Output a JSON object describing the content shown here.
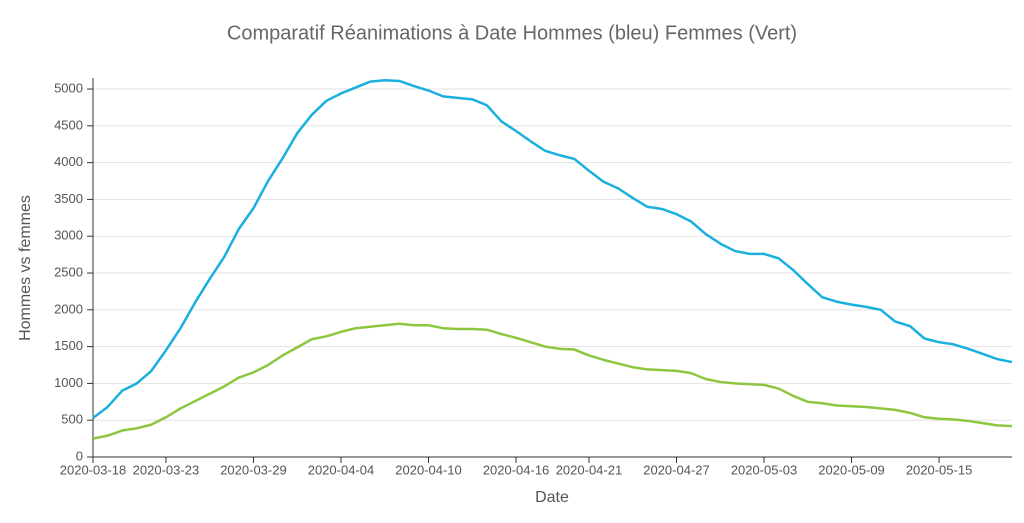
{
  "chart_data": {
    "type": "line",
    "title": "Comparatif Réanimations à Date Hommes (bleu) Femmes (Vert)",
    "x_label": "Date",
    "y_label": "Hommes vs femmes",
    "categories": [
      "2020-03-18",
      null,
      null,
      null,
      null,
      "2020-03-23",
      null,
      null,
      null,
      null,
      null,
      "2020-03-29",
      null,
      null,
      null,
      null,
      null,
      "2020-04-04",
      null,
      null,
      null,
      null,
      null,
      "2020-04-10",
      null,
      null,
      null,
      null,
      null,
      "2020-04-16",
      null,
      null,
      null,
      null,
      "2020-04-21",
      null,
      null,
      null,
      null,
      null,
      "2020-04-27",
      null,
      null,
      null,
      null,
      null,
      "2020-05-03",
      null,
      null,
      null,
      null,
      null,
      "2020-05-09",
      null,
      null,
      null,
      null,
      null,
      "2020-05-15",
      null,
      null,
      null,
      null,
      null
    ],
    "series": [
      {
        "color": "#1ab0de",
        "values": [
          530,
          680,
          900,
          1000,
          1170,
          1450,
          1750,
          2100,
          2420,
          2720,
          3100,
          3380,
          3750,
          4060,
          4400,
          4650,
          4840,
          4940,
          5020,
          5100,
          5120,
          5110,
          5040,
          4980,
          4900,
          4880,
          4860,
          4780,
          4560,
          4430,
          4290,
          4160,
          4100,
          4050,
          3890,
          3740,
          3650,
          3520,
          3400,
          3370,
          3300,
          3200,
          3030,
          2900,
          2800,
          2760,
          2760,
          2700,
          2540,
          2350,
          2170,
          2110,
          2070,
          2040,
          2000,
          1840,
          1780,
          1610,
          1560,
          1530,
          1470,
          1400,
          1330,
          1290
        ]
      },
      {
        "color": "#8dc63f",
        "values": [
          250,
          290,
          360,
          390,
          440,
          540,
          660,
          760,
          860,
          960,
          1080,
          1150,
          1250,
          1380,
          1490,
          1600,
          1640,
          1700,
          1750,
          1770,
          1790,
          1810,
          1790,
          1790,
          1750,
          1740,
          1740,
          1730,
          1670,
          1620,
          1560,
          1500,
          1470,
          1460,
          1380,
          1320,
          1270,
          1220,
          1190,
          1180,
          1170,
          1140,
          1060,
          1020,
          1000,
          990,
          980,
          930,
          830,
          750,
          730,
          700,
          690,
          680,
          660,
          640,
          600,
          540,
          520,
          510,
          490,
          460,
          430,
          420
        ]
      }
    ],
    "ylim": [
      0,
      5150
    ],
    "yticks": [
      0,
      500,
      1000,
      1500,
      2000,
      2500,
      3000,
      3500,
      4000,
      4500,
      5000
    ],
    "grid": true
  }
}
